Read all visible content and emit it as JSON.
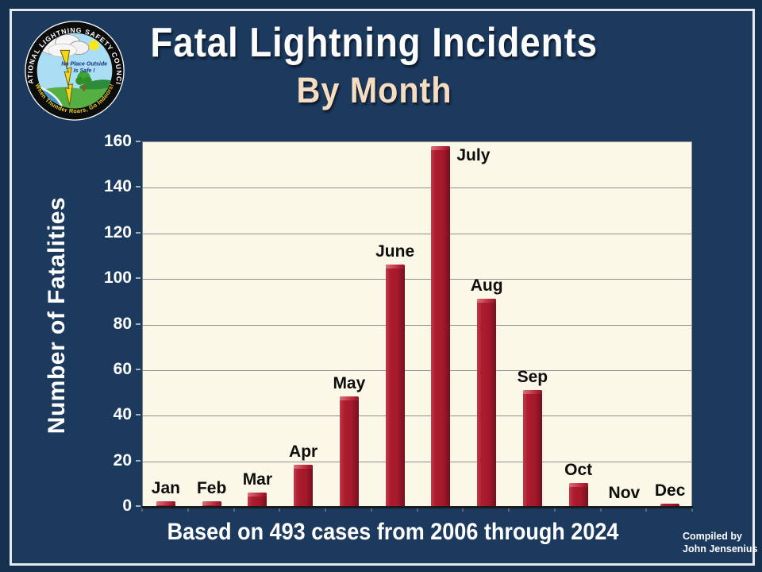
{
  "header": {
    "title": "Fatal Lightning Incidents",
    "subtitle": "By Month"
  },
  "logo": {
    "ring_text_top": "NATIONAL LIGHTNING SAFETY COUNCIL",
    "ring_text_bottom": "When Thunder Roars, Go Indoors!",
    "inner_text_line1": "No Place Outside",
    "inner_text_line2": "Is Safe !"
  },
  "chart_data": {
    "type": "bar",
    "title": "Fatal Lightning Incidents By Month",
    "categories": [
      "Jan",
      "Feb",
      "Mar",
      "Apr",
      "May",
      "June",
      "July",
      "Aug",
      "Sep",
      "Oct",
      "Nov",
      "Dec"
    ],
    "values": [
      2,
      2,
      6,
      18,
      48,
      106,
      158,
      91,
      51,
      10,
      0,
      1
    ],
    "xlabel": "",
    "ylabel": "Number of Fatalities",
    "ylim": [
      0,
      160
    ],
    "yticks": [
      0,
      20,
      40,
      60,
      80,
      100,
      120,
      140,
      160
    ],
    "grid": true,
    "legend": "none",
    "bar_color": "#a81b2b",
    "plot_bg": "#fbf8e8",
    "background": "#1c3a5e"
  },
  "footer": {
    "caption": "Based on 493 cases from 2006 through 2024",
    "credit_line1": "Compiled by",
    "credit_line2": "John Jensenius"
  }
}
